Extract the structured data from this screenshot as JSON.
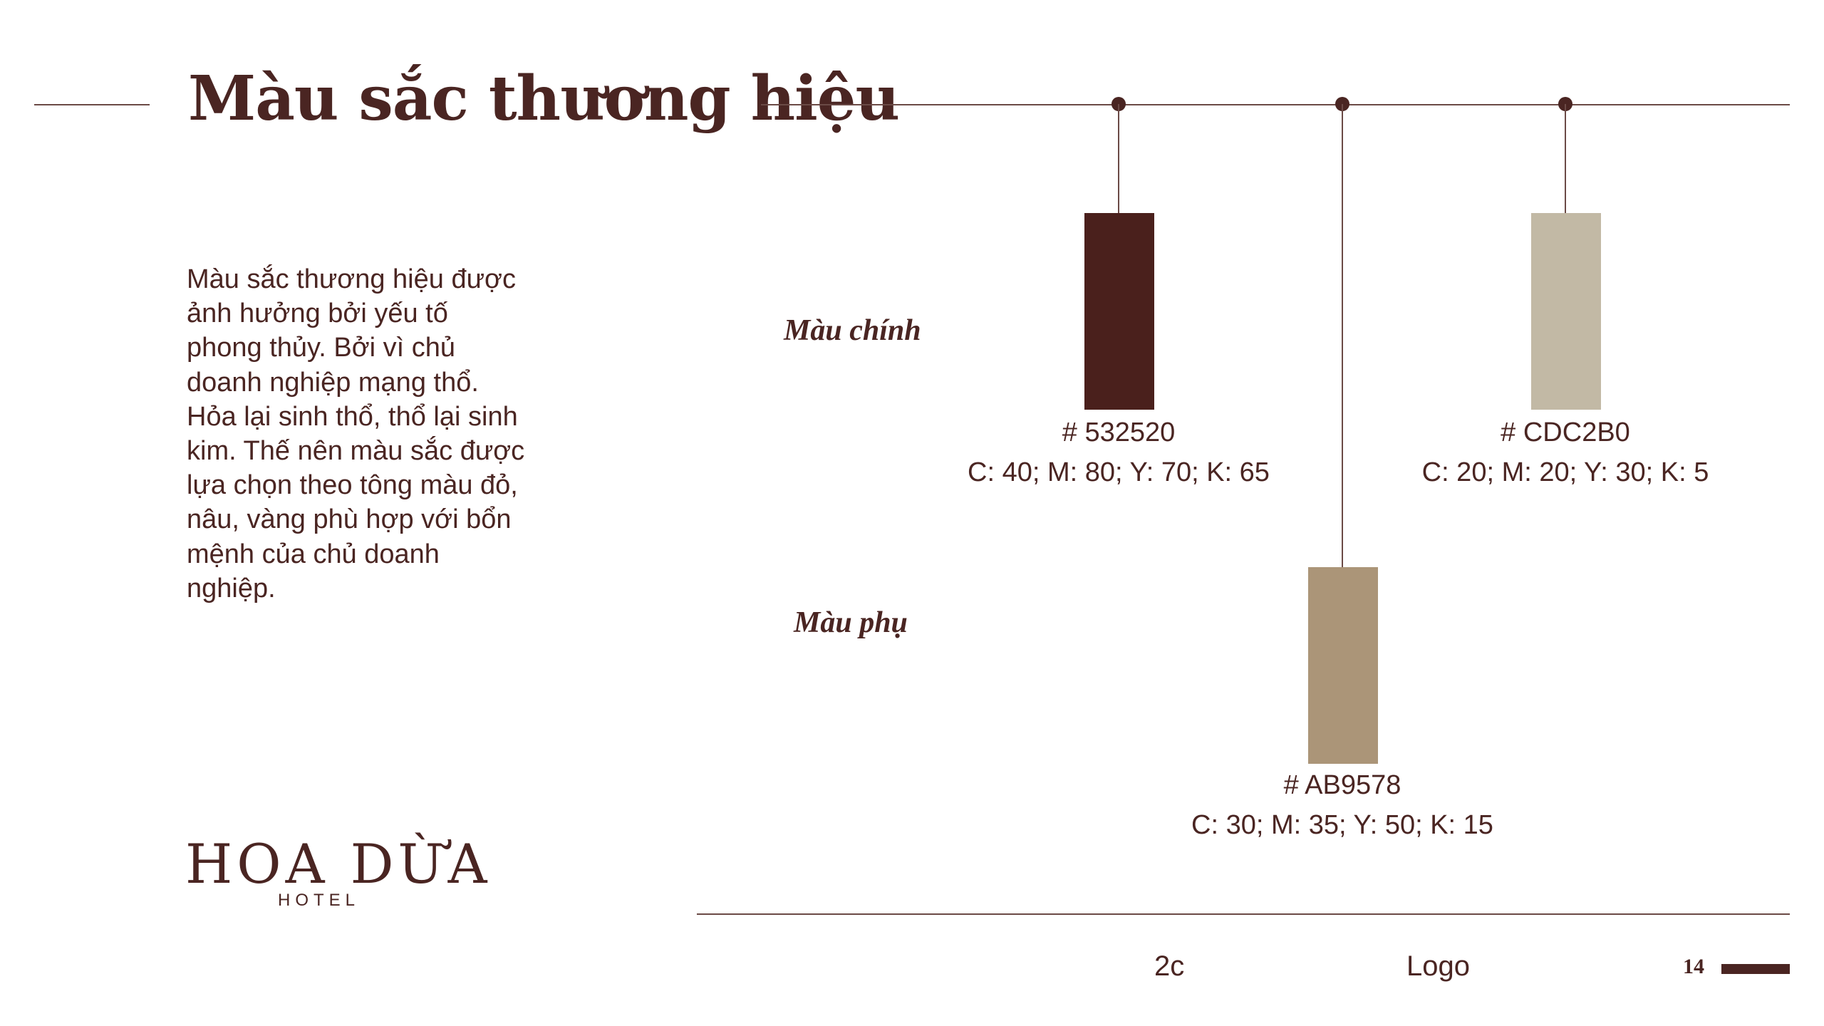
{
  "header": {
    "title": "Màu sắc thương hiệu"
  },
  "description": "Màu sắc thương hiệu được ảnh hưởng bởi yếu tố phong thủy. Bởi vì chủ doanh nghiệp mạng thổ. Hỏa lại sinh thổ, thổ lại sinh kim. Thế nên màu sắc được lựa chọn theo tông màu đỏ, nâu, vàng phù hợp với bổn mệnh của chủ doanh nghiệp.",
  "groups": {
    "primary_label": "Màu chính",
    "secondary_label": "Màu phụ"
  },
  "colors": [
    {
      "hex_label": "# 532520",
      "cmyk": "C: 40; M: 80; Y: 70; K: 65",
      "swatch": "#4a201c"
    },
    {
      "hex_label": "# CDC2B0",
      "cmyk": "C: 20; M: 20; Y: 30; K: 5",
      "swatch": "#c2b9a5"
    },
    {
      "hex_label": "# AB9578",
      "cmyk": "C: 30; M: 35; Y: 50; K: 15",
      "swatch": "#ab9578"
    }
  ],
  "brand": {
    "name": "HOA DỪA",
    "subtitle": "HOTEL"
  },
  "footer": {
    "item1": "2c",
    "item2": "Logo",
    "page_number": "14"
  },
  "theme": {
    "text": "#4a2522",
    "line": "#6b4a46"
  }
}
